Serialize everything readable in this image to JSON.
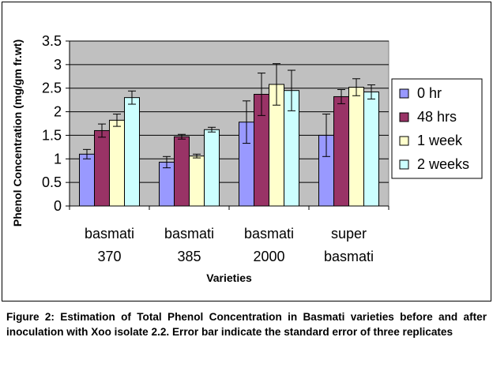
{
  "chart_data": {
    "type": "bar",
    "ylabel": "Phenol Concentration (mg/gm fr.wt)",
    "xlabel": "Varieties",
    "ylim": [
      0,
      3.5
    ],
    "yticks": [
      "0",
      "0.5",
      "1",
      "1.5",
      "2",
      "2.5",
      "3",
      "3.5"
    ],
    "categories": [
      [
        "basmati",
        "370"
      ],
      [
        "basmati",
        "385"
      ],
      [
        "basmati",
        "2000"
      ],
      [
        "super",
        "basmati"
      ]
    ],
    "series": [
      {
        "name": "0 hr",
        "color": "#9999ff",
        "values": [
          1.1,
          0.93,
          1.78,
          1.5
        ],
        "errors": [
          0.1,
          0.12,
          0.45,
          0.45
        ]
      },
      {
        "name": "48 hrs",
        "color": "#993366",
        "values": [
          1.6,
          1.47,
          2.37,
          2.32
        ],
        "errors": [
          0.14,
          0.05,
          0.45,
          0.15
        ]
      },
      {
        "name": "1 week",
        "color": "#ffffcc",
        "values": [
          1.82,
          1.06,
          2.58,
          2.52
        ],
        "errors": [
          0.13,
          0.04,
          0.44,
          0.18
        ]
      },
      {
        "name": "2 weeks",
        "color": "#ccffff",
        "values": [
          2.3,
          1.62,
          2.45,
          2.42
        ],
        "errors": [
          0.14,
          0.05,
          0.43,
          0.15
        ]
      }
    ],
    "grid": true,
    "plot_background": "#c0c0c0",
    "legend_position": "right"
  },
  "caption": "Figure 2: Estimation of Total Phenol Concentration in Basmati varieties before and after inoculation with Xoo isolate 2.2. Error bar indicate the standard error of three replicates"
}
